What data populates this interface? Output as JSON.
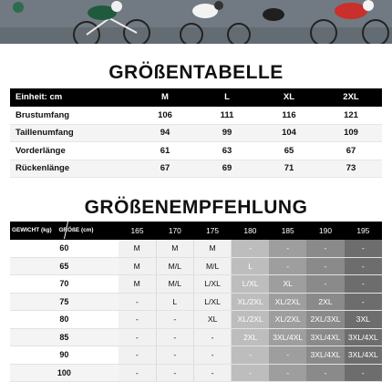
{
  "size_chart": {
    "title": "GRÖßENTABELLE",
    "header": {
      "unit_label": "Einheit: cm",
      "sizes": [
        "M",
        "L",
        "XL",
        "2XL"
      ]
    },
    "rows": [
      {
        "label": "Brustumfang",
        "values": [
          "106",
          "111",
          "116",
          "121"
        ]
      },
      {
        "label": "Taillenumfang",
        "values": [
          "94",
          "99",
          "104",
          "109"
        ]
      },
      {
        "label": "Vorderlänge",
        "values": [
          "61",
          "63",
          "65",
          "67"
        ]
      },
      {
        "label": "Rückenlänge",
        "values": [
          "67",
          "69",
          "71",
          "73"
        ]
      }
    ]
  },
  "recommendation": {
    "title": "GRÖßENEMPFEHLUNG",
    "corner_weight_label": "GEWICHT (kg)",
    "corner_height_label": "GRÖßE (cm)",
    "heights": [
      "165",
      "170",
      "175",
      "180",
      "185",
      "190",
      "195"
    ],
    "rows": [
      {
        "weight": "60",
        "cells": [
          "M",
          "M",
          "M",
          "-",
          "-",
          "-",
          "-"
        ]
      },
      {
        "weight": "65",
        "cells": [
          "M",
          "M/L",
          "M/L",
          "L",
          "-",
          "-",
          "-"
        ]
      },
      {
        "weight": "70",
        "cells": [
          "M",
          "M/L",
          "L/XL",
          "L/XL",
          "XL",
          "-",
          "-"
        ]
      },
      {
        "weight": "75",
        "cells": [
          "-",
          "L",
          "L/XL",
          "XL/2XL",
          "XL/2XL",
          "2XL",
          "-"
        ]
      },
      {
        "weight": "80",
        "cells": [
          "-",
          "-",
          "XL",
          "XL/2XL",
          "XL/2XL",
          "2XL/3XL",
          "3XL"
        ]
      },
      {
        "weight": "85",
        "cells": [
          "-",
          "-",
          "-",
          "2XL",
          "3XL/4XL",
          "3XL/4XL",
          "3XL/4XL"
        ]
      },
      {
        "weight": "90",
        "cells": [
          "-",
          "-",
          "-",
          "-",
          "-",
          "3XL/4XL",
          "3XL/4XL"
        ]
      },
      {
        "weight": "100",
        "cells": [
          "-",
          "-",
          "-",
          "-",
          "-",
          "-",
          "-"
        ]
      }
    ]
  },
  "colors": {
    "header_bg": "#000000",
    "col_light": "#f1f1f1",
    "col_180": "#bdbdbd",
    "col_185": "#9e9e9e",
    "col_190": "#8a8a8a",
    "col_195": "#6d6d6d"
  }
}
